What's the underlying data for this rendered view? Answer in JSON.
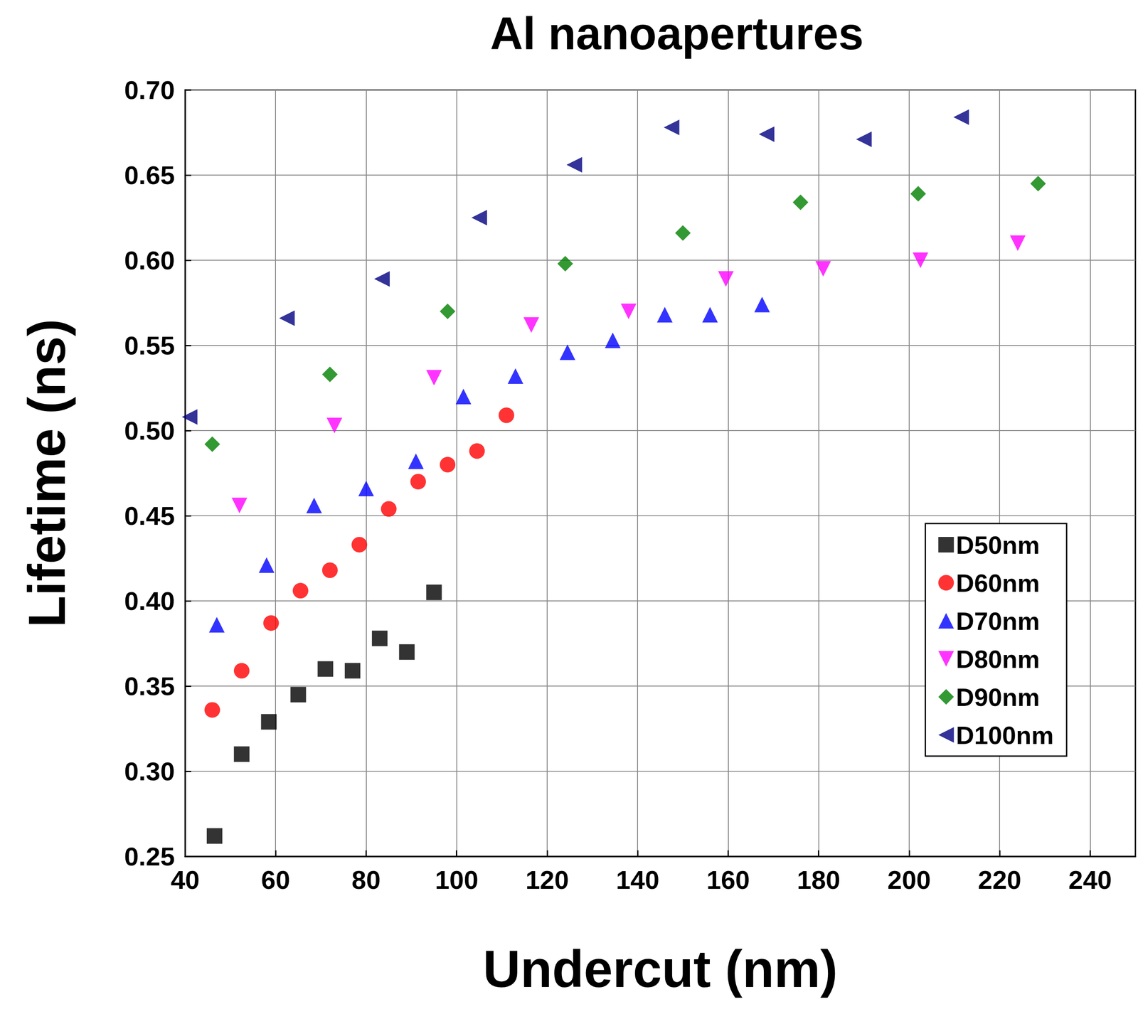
{
  "chart_data": {
    "type": "scatter",
    "title": "Al nanoapertures",
    "x_label": "Undercut (nm)",
    "y_label": "Lifetime (ns)",
    "xlim": [
      40,
      250
    ],
    "xticks": [
      40,
      60,
      80,
      100,
      120,
      140,
      160,
      180,
      200,
      220,
      240
    ],
    "ylim": [
      0.25,
      0.7
    ],
    "yticks": [
      0.25,
      {
        "value": 0.3,
        "label": "0.30"
      },
      0.35,
      {
        "value": 0.4,
        "label": "0.40"
      },
      0.45,
      {
        "value": 0.5,
        "label": "0.50"
      },
      0.55,
      {
        "value": 0.6,
        "label": "0.60"
      },
      0.65,
      {
        "value": 0.7,
        "label": "0.70"
      }
    ],
    "grid": true,
    "legend": "lower right",
    "series": [
      {
        "name": "D50nm",
        "color": "#000000",
        "marker": "square",
        "x": [
          46.5,
          52.5,
          58.5,
          65,
          71,
          77,
          83,
          89,
          95
        ],
        "values": [
          0.262,
          0.31,
          0.329,
          0.345,
          0.36,
          0.359,
          0.378,
          0.37,
          0.405
        ]
      },
      {
        "name": "D60nm",
        "color": "#ff0000",
        "marker": "circle",
        "x": [
          46,
          52.5,
          59,
          65.5,
          72,
          78.5,
          85,
          91.5,
          98,
          104.5,
          111
        ],
        "values": [
          0.336,
          0.359,
          0.387,
          0.406,
          0.418,
          0.433,
          0.454,
          0.47,
          0.48,
          0.488,
          0.509
        ]
      },
      {
        "name": "D70nm",
        "color": "#0000ff",
        "marker": "triangle-up",
        "x": [
          47,
          58,
          68.5,
          80,
          91,
          101.5,
          113,
          124.5,
          134.5,
          146,
          156,
          167.5
        ],
        "values": [
          0.386,
          0.421,
          0.456,
          0.466,
          0.482,
          0.52,
          0.532,
          0.546,
          0.553,
          0.568,
          0.568,
          0.574
        ]
      },
      {
        "name": "D80nm",
        "color": "#ff00ff",
        "marker": "triangle-down",
        "x": [
          52,
          73,
          95,
          116.5,
          138,
          159.5,
          181,
          202.5,
          224
        ],
        "values": [
          0.456,
          0.503,
          0.531,
          0.562,
          0.57,
          0.589,
          0.595,
          0.6,
          0.61
        ]
      },
      {
        "name": "D90nm",
        "color": "#008000",
        "marker": "diamond",
        "x": [
          46,
          72,
          98,
          124,
          150,
          176,
          202,
          228.5
        ],
        "values": [
          0.492,
          0.533,
          0.57,
          0.598,
          0.616,
          0.634,
          0.639,
          0.645
        ]
      },
      {
        "name": "D100nm",
        "color": "#000080",
        "marker": "triangle-left",
        "x": [
          41,
          62.5,
          83.5,
          105,
          126,
          147.5,
          168.5,
          190,
          211.5
        ],
        "values": [
          0.508,
          0.566,
          0.589,
          0.625,
          0.656,
          0.678,
          0.674,
          0.671,
          0.684
        ]
      }
    ]
  }
}
